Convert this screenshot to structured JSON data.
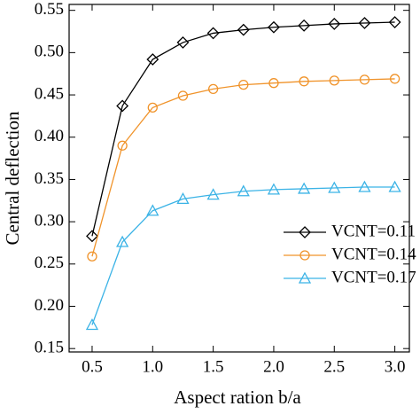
{
  "chart_data": {
    "type": "line",
    "xlabel": "Aspect ration b/a",
    "ylabel": "Central deflection",
    "x": [
      0.5,
      0.75,
      1.0,
      1.25,
      1.5,
      1.75,
      2.0,
      2.25,
      2.5,
      2.75,
      3.0
    ],
    "series": [
      {
        "name": "VCNT=0.11",
        "color": "#000000",
        "marker": "diamond",
        "values": [
          0.283,
          0.437,
          0.492,
          0.512,
          0.523,
          0.527,
          0.53,
          0.532,
          0.534,
          0.535,
          0.536
        ]
      },
      {
        "name": "VCNT=0.14",
        "color": "#f0932a",
        "marker": "circle",
        "values": [
          0.259,
          0.39,
          0.435,
          0.449,
          0.457,
          0.462,
          0.464,
          0.466,
          0.467,
          0.468,
          0.469
        ]
      },
      {
        "name": "VCNT=0.17",
        "color": "#3bb3e6",
        "marker": "triangle",
        "values": [
          0.178,
          0.276,
          0.313,
          0.327,
          0.332,
          0.336,
          0.338,
          0.339,
          0.34,
          0.341,
          0.341
        ]
      }
    ],
    "xlim": [
      0.31,
      3.12
    ],
    "ylim": [
      0.146,
      0.557
    ],
    "xticks": [
      0.5,
      {
        "value": 1.0,
        "label": "1.0"
      },
      1.5,
      {
        "value": 2.0,
        "label": "2.0"
      },
      2.5,
      {
        "value": 3.0,
        "label": "3.0"
      }
    ],
    "yticks": [
      0.15,
      {
        "value": 0.2,
        "label": "0.20"
      },
      0.25,
      {
        "value": 0.3,
        "label": "0.30"
      },
      0.35,
      {
        "value": 0.4,
        "label": "0.40"
      },
      0.45,
      {
        "value": 0.5,
        "label": "0.50"
      },
      0.55
    ],
    "legend": "lower right"
  }
}
